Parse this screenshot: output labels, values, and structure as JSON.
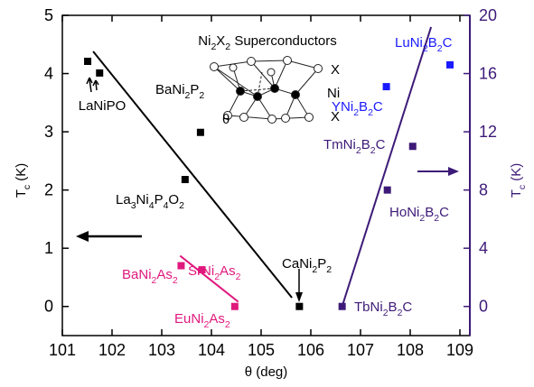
{
  "chart_data": {
    "type": "scatter",
    "title": "Ni2X2 Superconductors",
    "xlabel": "θ (deg)",
    "ylabel": "Tc (K)",
    "y2label": "Tc (K)",
    "xlim": [
      101,
      109.2
    ],
    "xticks": [
      101,
      102,
      103,
      104,
      105,
      106,
      107,
      108,
      109
    ],
    "ylim": [
      -0.5,
      5
    ],
    "yticks": [
      0,
      1,
      2,
      3,
      4,
      5
    ],
    "y2lim": [
      -2,
      20
    ],
    "y2ticks": [
      0,
      4,
      8,
      12,
      16,
      20
    ],
    "y2color": "#3d1a78",
    "series": [
      {
        "color": "#000000",
        "axis": "y",
        "x": [
          101.51,
          101.75,
          103.47,
          103.78,
          105.77
        ],
        "values": [
          4.21,
          4.01,
          2.18,
          2.99,
          0
        ]
      },
      {
        "color": "#e0197d",
        "axis": "y",
        "x": [
          103.39,
          103.81,
          104.47
        ],
        "values": [
          0.7,
          0.63,
          0
        ]
      },
      {
        "color": "#1a1aff",
        "axis": "y2",
        "x": [
          107.52,
          108.8
        ],
        "values": [
          15.1,
          16.6
        ]
      },
      {
        "color": "#3d1a78",
        "axis": "y2",
        "x": [
          106.63,
          107.54,
          108.05
        ],
        "values": [
          0,
          8.0,
          11.0
        ]
      }
    ],
    "fit_lines": [
      {
        "color": "#000000",
        "axis": "y",
        "x": [
          101.62,
          105.62
        ],
        "values": [
          4.38,
          0.15
        ]
      },
      {
        "color": "#e0197d",
        "axis": "y",
        "x": [
          103.37,
          104.54
        ],
        "values": [
          0.87,
          0.08
        ]
      },
      {
        "color": "#3d1a78",
        "axis": "y2",
        "x": [
          106.63,
          108.42
        ],
        "values": [
          0,
          19.2
        ]
      }
    ],
    "annotations": [
      {
        "text": "LaNiPO",
        "color": "#000000"
      },
      {
        "text": "BaNi2P2",
        "color": "#000000"
      },
      {
        "text": "La3Ni4P4O2",
        "color": "#000000"
      },
      {
        "text": "CaNi2P2",
        "color": "#000000"
      },
      {
        "text": "BaNi2As2",
        "color": "#e0197d"
      },
      {
        "text": "SrNi2As2",
        "color": "#e0197d"
      },
      {
        "text": "EuNi2As2",
        "color": "#e0197d"
      },
      {
        "text": "TbNi2B2C",
        "color": "#3d1a78"
      },
      {
        "text": "HoNi2B2C",
        "color": "#3d1a78"
      },
      {
        "text": "TmNi2B2C",
        "color": "#3d1a78"
      },
      {
        "text": "YNi2B2C",
        "color": "#1a1aff"
      },
      {
        "text": "LuNi2B2C",
        "color": "#1a1aff"
      }
    ],
    "structure_labels": [
      "θ",
      "X",
      "Ni",
      "X"
    ]
  }
}
